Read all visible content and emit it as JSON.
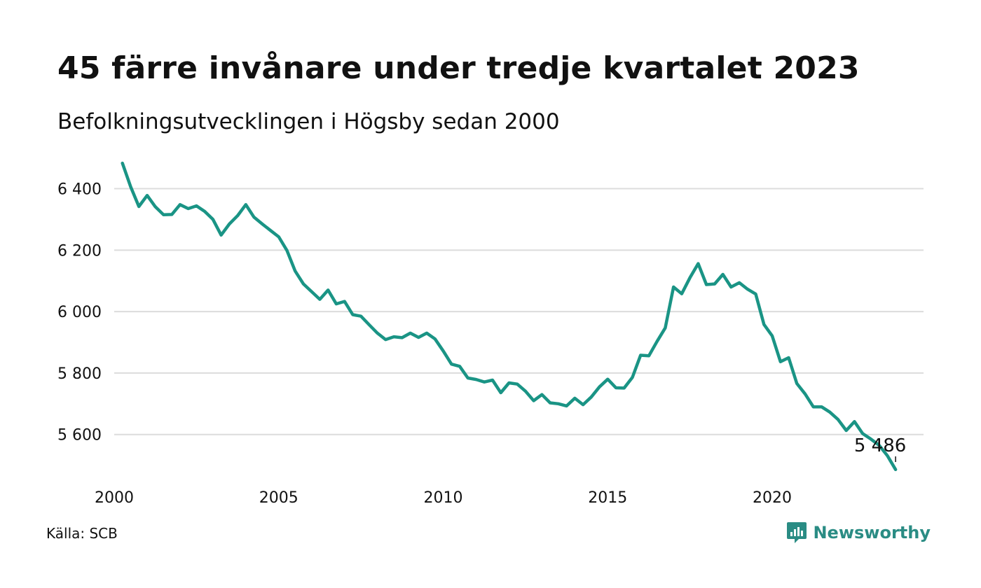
{
  "title": "45 färre invånare under tredje kvartalet 2023",
  "subtitle": "Befolkningsutvecklingen i Högsby sedan 2000",
  "source": "Källa: SCB",
  "brand": "Newsworthy",
  "colors": {
    "line": "#1a9485",
    "grid": "#dcdcdc",
    "text": "#111111",
    "brand": "#2a8c84"
  },
  "chart_data": {
    "type": "line",
    "title": "45 färre invånare under tredje kvartalet 2023",
    "subtitle": "Befolkningsutvecklingen i Högsby sedan 2000",
    "xlabel": "",
    "ylabel": "",
    "x_ticks": [
      2000,
      2005,
      2010,
      2015,
      2020
    ],
    "y_ticks": [
      5600,
      5800,
      6000,
      6200,
      6400
    ],
    "y_tick_labels": [
      "5 600",
      "5 800",
      "6 000",
      "6 200",
      "6 400"
    ],
    "xlim": [
      2000,
      2024.6
    ],
    "ylim": [
      5465,
      6490
    ],
    "grid": true,
    "end_label": "5 486",
    "series": [
      {
        "x": [
          2000.25,
          2000.5,
          2000.75,
          2001.0,
          2001.25,
          2001.5,
          2001.75,
          2002.0,
          2002.25,
          2002.5,
          2002.75,
          2003.0,
          2003.25,
          2003.5,
          2003.75,
          2004.0,
          2004.25,
          2004.5,
          2004.75,
          2005.0,
          2005.25,
          2005.5,
          2005.75,
          2006.0,
          2006.25,
          2006.5,
          2006.75,
          2007.0,
          2007.25,
          2007.5,
          2007.75,
          2008.0,
          2008.25,
          2008.5,
          2008.75,
          2009.0,
          2009.25,
          2009.5,
          2009.75,
          2010.0,
          2010.25,
          2010.5,
          2010.75,
          2011.0,
          2011.25,
          2011.5,
          2011.75,
          2012.0,
          2012.25,
          2012.5,
          2012.75,
          2013.0,
          2013.25,
          2013.5,
          2013.75,
          2014.0,
          2014.25,
          2014.5,
          2014.75,
          2015.0,
          2015.25,
          2015.5,
          2015.75,
          2016.0,
          2016.25,
          2016.5,
          2016.75,
          2017.0,
          2017.25,
          2017.5,
          2017.75,
          2018.0,
          2018.25,
          2018.5,
          2018.75,
          2019.0,
          2019.25,
          2019.5,
          2019.75,
          2020.0,
          2020.25,
          2020.5,
          2020.75,
          2021.0,
          2021.25,
          2021.5,
          2021.75,
          2022.0,
          2022.25,
          2022.5,
          2022.75,
          2023.0,
          2023.25,
          2023.5,
          2023.75
        ],
        "values": [
          6483,
          6406,
          6342,
          6378,
          6341,
          6315,
          6316,
          6348,
          6335,
          6344,
          6326,
          6300,
          6249,
          6285,
          6312,
          6348,
          6307,
          6285,
          6264,
          6243,
          6199,
          6132,
          6090,
          6065,
          6040,
          6070,
          6025,
          6033,
          5990,
          5985,
          5957,
          5930,
          5909,
          5918,
          5915,
          5930,
          5916,
          5930,
          5911,
          5872,
          5829,
          5822,
          5784,
          5779,
          5771,
          5777,
          5736,
          5768,
          5764,
          5741,
          5710,
          5730,
          5703,
          5700,
          5693,
          5718,
          5697,
          5722,
          5755,
          5780,
          5752,
          5751,
          5786,
          5858,
          5856,
          5903,
          5947,
          6080,
          6058,
          6110,
          6156,
          6088,
          6090,
          6121,
          6080,
          6094,
          6073,
          6057,
          5958,
          5921,
          5837,
          5850,
          5766,
          5732,
          5690,
          5690,
          5673,
          5649,
          5613,
          5642,
          5603,
          5585,
          5565,
          5531,
          5486
        ]
      }
    ]
  }
}
